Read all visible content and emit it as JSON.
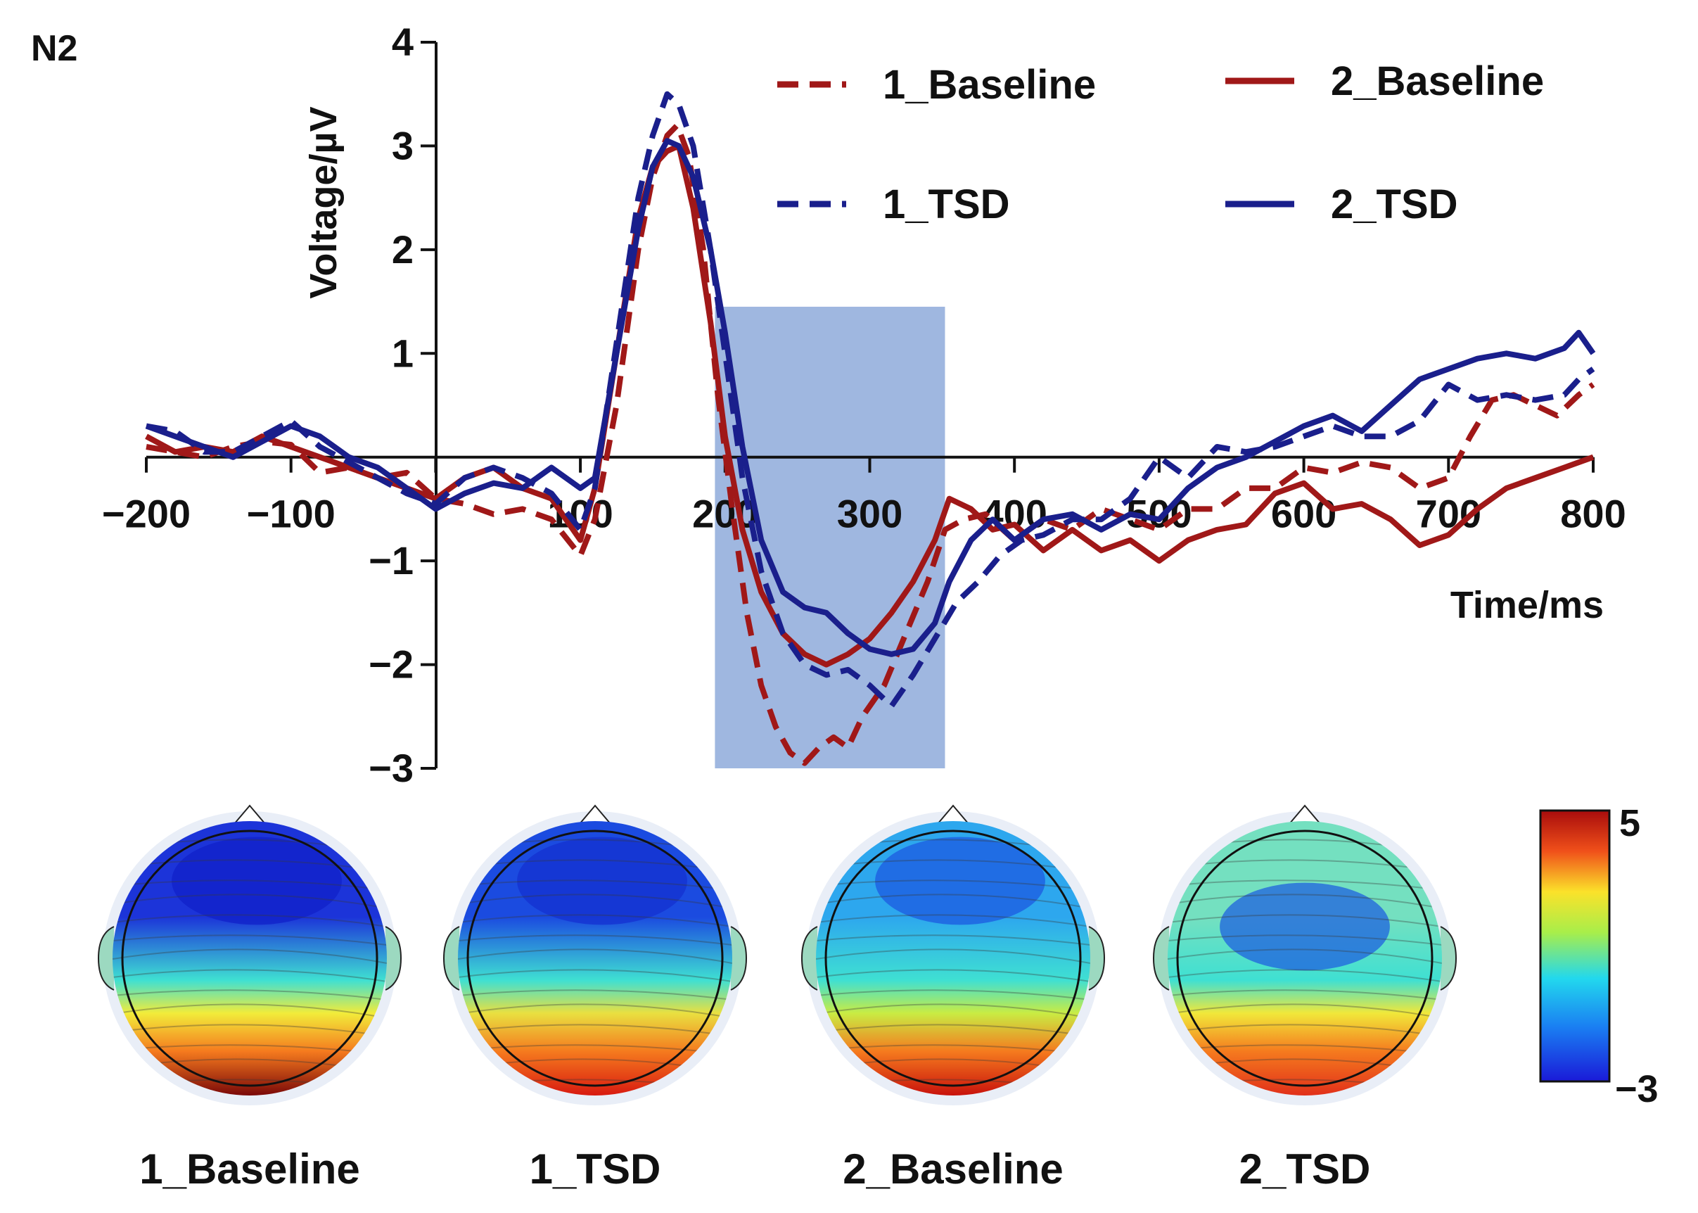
{
  "chart_data": {
    "type": "line",
    "panel_label": "N2",
    "title": "",
    "xlabel": "Time/ms",
    "ylabel": "Voltage/µV",
    "xlim": [
      -200,
      800
    ],
    "ylim": [
      -3,
      4
    ],
    "x_ticks": [
      -200,
      -100,
      100,
      200,
      300,
      400,
      500,
      600,
      700,
      800
    ],
    "x_tick_labels": [
      "−200",
      "−100",
      "100",
      "200",
      "300",
      "400",
      "500",
      "600",
      "700",
      "800"
    ],
    "y_ticks": [
      -3,
      -2,
      -1,
      1,
      2,
      3,
      4
    ],
    "y_tick_labels": [
      "−3",
      "−2",
      "−1",
      "1",
      "2",
      "3",
      "4"
    ],
    "highlight_window": {
      "x_start": 193,
      "x_end": 352,
      "y_top": 1.45,
      "y_bottom": -3,
      "color": "#7f9fd6"
    },
    "legend_position": "top-right",
    "series": [
      {
        "name": "1_Baseline",
        "color": "#a01818",
        "dash": "dashed",
        "points": [
          [
            -200,
            0.1
          ],
          [
            -180,
            0.05
          ],
          [
            -160,
            0.0
          ],
          [
            -140,
            0.1
          ],
          [
            -120,
            0.15
          ],
          [
            -100,
            0.12
          ],
          [
            -80,
            -0.15
          ],
          [
            -60,
            -0.1
          ],
          [
            -40,
            -0.2
          ],
          [
            -20,
            -0.15
          ],
          [
            0,
            -0.4
          ],
          [
            20,
            -0.45
          ],
          [
            40,
            -0.55
          ],
          [
            60,
            -0.5
          ],
          [
            80,
            -0.6
          ],
          [
            100,
            -0.95
          ],
          [
            110,
            -0.6
          ],
          [
            125,
            0.5
          ],
          [
            140,
            2.0
          ],
          [
            150,
            2.7
          ],
          [
            160,
            3.1
          ],
          [
            167,
            3.2
          ],
          [
            175,
            2.9
          ],
          [
            185,
            2.0
          ],
          [
            195,
            0.6
          ],
          [
            205,
            -0.5
          ],
          [
            215,
            -1.5
          ],
          [
            225,
            -2.2
          ],
          [
            235,
            -2.6
          ],
          [
            245,
            -2.85
          ],
          [
            255,
            -2.95
          ],
          [
            265,
            -2.8
          ],
          [
            275,
            -2.7
          ],
          [
            285,
            -2.8
          ],
          [
            295,
            -2.5
          ],
          [
            310,
            -2.2
          ],
          [
            325,
            -1.7
          ],
          [
            340,
            -1.2
          ],
          [
            352,
            -0.7
          ],
          [
            365,
            -0.6
          ],
          [
            380,
            -0.55
          ],
          [
            400,
            -0.8
          ],
          [
            420,
            -0.6
          ],
          [
            440,
            -0.7
          ],
          [
            460,
            -0.5
          ],
          [
            480,
            -0.6
          ],
          [
            500,
            -0.7
          ],
          [
            520,
            -0.5
          ],
          [
            540,
            -0.5
          ],
          [
            560,
            -0.3
          ],
          [
            580,
            -0.3
          ],
          [
            600,
            -0.1
          ],
          [
            620,
            -0.15
          ],
          [
            640,
            -0.05
          ],
          [
            660,
            -0.1
          ],
          [
            680,
            -0.3
          ],
          [
            700,
            -0.2
          ],
          [
            715,
            0.2
          ],
          [
            730,
            0.55
          ],
          [
            745,
            0.6
          ],
          [
            760,
            0.5
          ],
          [
            775,
            0.4
          ],
          [
            790,
            0.6
          ],
          [
            800,
            0.7
          ]
        ]
      },
      {
        "name": "2_Baseline",
        "color": "#a01818",
        "dash": "solid",
        "points": [
          [
            -200,
            0.2
          ],
          [
            -180,
            0.05
          ],
          [
            -160,
            0.1
          ],
          [
            -140,
            0.05
          ],
          [
            -120,
            0.2
          ],
          [
            -100,
            0.1
          ],
          [
            -80,
            0.0
          ],
          [
            -60,
            -0.1
          ],
          [
            -40,
            -0.2
          ],
          [
            -20,
            -0.3
          ],
          [
            0,
            -0.4
          ],
          [
            20,
            -0.2
          ],
          [
            40,
            -0.1
          ],
          [
            60,
            -0.3
          ],
          [
            80,
            -0.4
          ],
          [
            100,
            -0.8
          ],
          [
            110,
            -0.3
          ],
          [
            125,
            1.0
          ],
          [
            140,
            2.3
          ],
          [
            150,
            2.8
          ],
          [
            160,
            2.95
          ],
          [
            168,
            3.0
          ],
          [
            178,
            2.4
          ],
          [
            190,
            1.3
          ],
          [
            200,
            0.2
          ],
          [
            212,
            -0.7
          ],
          [
            225,
            -1.3
          ],
          [
            240,
            -1.7
          ],
          [
            255,
            -1.9
          ],
          [
            270,
            -2.0
          ],
          [
            285,
            -1.9
          ],
          [
            300,
            -1.75
          ],
          [
            315,
            -1.5
          ],
          [
            330,
            -1.2
          ],
          [
            345,
            -0.8
          ],
          [
            355,
            -0.4
          ],
          [
            370,
            -0.5
          ],
          [
            385,
            -0.7
          ],
          [
            400,
            -0.65
          ],
          [
            420,
            -0.9
          ],
          [
            440,
            -0.7
          ],
          [
            460,
            -0.9
          ],
          [
            480,
            -0.8
          ],
          [
            500,
            -1.0
          ],
          [
            520,
            -0.8
          ],
          [
            540,
            -0.7
          ],
          [
            560,
            -0.65
          ],
          [
            580,
            -0.35
          ],
          [
            600,
            -0.25
          ],
          [
            620,
            -0.5
          ],
          [
            640,
            -0.45
          ],
          [
            660,
            -0.6
          ],
          [
            680,
            -0.85
          ],
          [
            700,
            -0.75
          ],
          [
            720,
            -0.5
          ],
          [
            740,
            -0.3
          ],
          [
            760,
            -0.2
          ],
          [
            780,
            -0.1
          ],
          [
            800,
            0.0
          ]
        ]
      },
      {
        "name": "1_TSD",
        "color": "#1a1f8c",
        "dash": "dashed",
        "points": [
          [
            -200,
            0.3
          ],
          [
            -180,
            0.25
          ],
          [
            -160,
            0.05
          ],
          [
            -140,
            0.05
          ],
          [
            -120,
            0.2
          ],
          [
            -100,
            0.35
          ],
          [
            -80,
            0.1
          ],
          [
            -60,
            -0.05
          ],
          [
            -40,
            -0.2
          ],
          [
            -20,
            -0.35
          ],
          [
            0,
            -0.45
          ],
          [
            20,
            -0.2
          ],
          [
            40,
            -0.1
          ],
          [
            60,
            -0.2
          ],
          [
            80,
            -0.35
          ],
          [
            100,
            -0.7
          ],
          [
            110,
            -0.3
          ],
          [
            125,
            1.1
          ],
          [
            140,
            2.5
          ],
          [
            150,
            3.1
          ],
          [
            160,
            3.5
          ],
          [
            168,
            3.4
          ],
          [
            178,
            3.0
          ],
          [
            190,
            2.0
          ],
          [
            200,
            1.0
          ],
          [
            212,
            -0.2
          ],
          [
            225,
            -1.1
          ],
          [
            240,
            -1.7
          ],
          [
            255,
            -2.0
          ],
          [
            270,
            -2.1
          ],
          [
            285,
            -2.05
          ],
          [
            300,
            -2.2
          ],
          [
            315,
            -2.4
          ],
          [
            330,
            -2.1
          ],
          [
            345,
            -1.75
          ],
          [
            360,
            -1.4
          ],
          [
            375,
            -1.2
          ],
          [
            390,
            -0.95
          ],
          [
            405,
            -0.8
          ],
          [
            420,
            -0.75
          ],
          [
            440,
            -0.6
          ],
          [
            460,
            -0.6
          ],
          [
            480,
            -0.4
          ],
          [
            500,
            0.0
          ],
          [
            520,
            -0.2
          ],
          [
            540,
            0.1
          ],
          [
            560,
            0.05
          ],
          [
            580,
            0.1
          ],
          [
            600,
            0.2
          ],
          [
            620,
            0.3
          ],
          [
            640,
            0.2
          ],
          [
            660,
            0.2
          ],
          [
            680,
            0.35
          ],
          [
            700,
            0.7
          ],
          [
            720,
            0.55
          ],
          [
            740,
            0.6
          ],
          [
            760,
            0.55
          ],
          [
            780,
            0.6
          ],
          [
            790,
            0.75
          ],
          [
            800,
            0.85
          ]
        ]
      },
      {
        "name": "2_TSD",
        "color": "#1a1f8c",
        "dash": "solid",
        "points": [
          [
            -200,
            0.3
          ],
          [
            -180,
            0.2
          ],
          [
            -160,
            0.1
          ],
          [
            -140,
            0.0
          ],
          [
            -120,
            0.15
          ],
          [
            -100,
            0.3
          ],
          [
            -80,
            0.2
          ],
          [
            -60,
            0.0
          ],
          [
            -40,
            -0.1
          ],
          [
            -20,
            -0.3
          ],
          [
            0,
            -0.5
          ],
          [
            20,
            -0.35
          ],
          [
            40,
            -0.25
          ],
          [
            60,
            -0.3
          ],
          [
            80,
            -0.1
          ],
          [
            100,
            -0.3
          ],
          [
            110,
            -0.2
          ],
          [
            125,
            1.0
          ],
          [
            140,
            2.2
          ],
          [
            150,
            2.8
          ],
          [
            160,
            3.05
          ],
          [
            168,
            3.0
          ],
          [
            178,
            2.7
          ],
          [
            190,
            2.0
          ],
          [
            200,
            1.2
          ],
          [
            212,
            0.1
          ],
          [
            225,
            -0.8
          ],
          [
            240,
            -1.3
          ],
          [
            255,
            -1.45
          ],
          [
            270,
            -1.5
          ],
          [
            285,
            -1.7
          ],
          [
            300,
            -1.85
          ],
          [
            315,
            -1.9
          ],
          [
            330,
            -1.85
          ],
          [
            345,
            -1.6
          ],
          [
            355,
            -1.2
          ],
          [
            370,
            -0.8
          ],
          [
            385,
            -0.6
          ],
          [
            400,
            -0.8
          ],
          [
            420,
            -0.6
          ],
          [
            440,
            -0.55
          ],
          [
            460,
            -0.7
          ],
          [
            480,
            -0.55
          ],
          [
            500,
            -0.6
          ],
          [
            520,
            -0.3
          ],
          [
            540,
            -0.1
          ],
          [
            560,
            0.0
          ],
          [
            580,
            0.15
          ],
          [
            600,
            0.3
          ],
          [
            620,
            0.4
          ],
          [
            640,
            0.25
          ],
          [
            660,
            0.5
          ],
          [
            680,
            0.75
          ],
          [
            700,
            0.85
          ],
          [
            720,
            0.95
          ],
          [
            740,
            1.0
          ],
          [
            760,
            0.95
          ],
          [
            780,
            1.05
          ],
          [
            790,
            1.2
          ],
          [
            800,
            1.0
          ]
        ]
      }
    ],
    "topomaps": {
      "colorbar": {
        "min": -3,
        "max": 5,
        "min_label": "−3",
        "max_label": "5"
      },
      "maps": [
        {
          "name": "1_Baseline",
          "top": "#1c34d9",
          "mid": "#f2ec3a",
          "bottom": "#7a0808",
          "blob": "#1020c8"
        },
        {
          "name": "1_TSD",
          "top": "#1b4be0",
          "mid": "#e9e040",
          "bottom": "#d81a10",
          "blob": "#1430d0"
        },
        {
          "name": "2_Baseline",
          "top": "#2da7ee",
          "mid": "#c9ec43",
          "bottom": "#c8120c",
          "blob": "#1c5ae0"
        },
        {
          "name": "2_TSD",
          "top": "#74e0c0",
          "mid": "#f1e83a",
          "bottom": "#e1301a",
          "blob": "#1f62df"
        }
      ]
    }
  }
}
